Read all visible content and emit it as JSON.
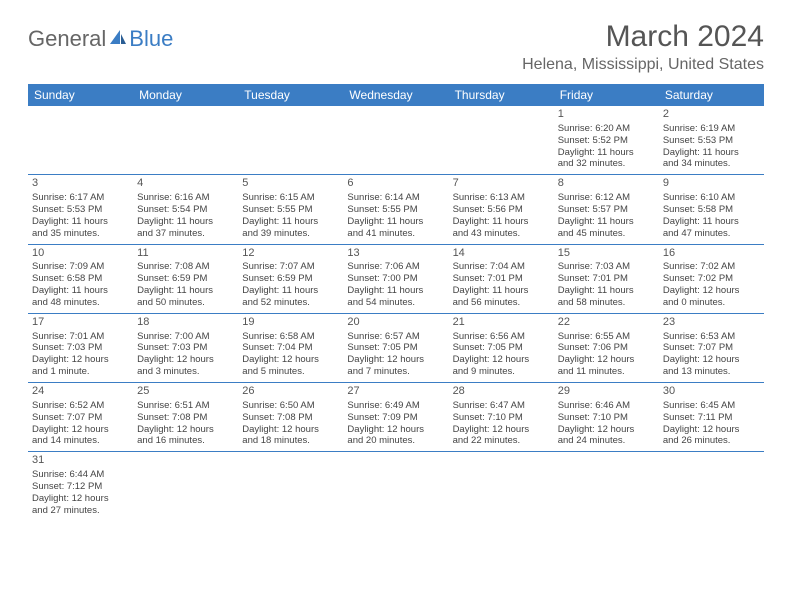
{
  "logo": {
    "general": "General",
    "blue": "Blue"
  },
  "title": "March 2024",
  "location": "Helena, Mississippi, United States",
  "colors": {
    "header_bg": "#3b7dc4",
    "header_text": "#ffffff",
    "text": "#444444",
    "border": "#3b7dc4",
    "page_bg": "#ffffff"
  },
  "day_names": [
    "Sunday",
    "Monday",
    "Tuesday",
    "Wednesday",
    "Thursday",
    "Friday",
    "Saturday"
  ],
  "weeks": [
    [
      null,
      null,
      null,
      null,
      null,
      {
        "n": "1",
        "sr": "Sunrise: 6:20 AM",
        "ss": "Sunset: 5:52 PM",
        "d1": "Daylight: 11 hours",
        "d2": "and 32 minutes."
      },
      {
        "n": "2",
        "sr": "Sunrise: 6:19 AM",
        "ss": "Sunset: 5:53 PM",
        "d1": "Daylight: 11 hours",
        "d2": "and 34 minutes."
      }
    ],
    [
      {
        "n": "3",
        "sr": "Sunrise: 6:17 AM",
        "ss": "Sunset: 5:53 PM",
        "d1": "Daylight: 11 hours",
        "d2": "and 35 minutes."
      },
      {
        "n": "4",
        "sr": "Sunrise: 6:16 AM",
        "ss": "Sunset: 5:54 PM",
        "d1": "Daylight: 11 hours",
        "d2": "and 37 minutes."
      },
      {
        "n": "5",
        "sr": "Sunrise: 6:15 AM",
        "ss": "Sunset: 5:55 PM",
        "d1": "Daylight: 11 hours",
        "d2": "and 39 minutes."
      },
      {
        "n": "6",
        "sr": "Sunrise: 6:14 AM",
        "ss": "Sunset: 5:55 PM",
        "d1": "Daylight: 11 hours",
        "d2": "and 41 minutes."
      },
      {
        "n": "7",
        "sr": "Sunrise: 6:13 AM",
        "ss": "Sunset: 5:56 PM",
        "d1": "Daylight: 11 hours",
        "d2": "and 43 minutes."
      },
      {
        "n": "8",
        "sr": "Sunrise: 6:12 AM",
        "ss": "Sunset: 5:57 PM",
        "d1": "Daylight: 11 hours",
        "d2": "and 45 minutes."
      },
      {
        "n": "9",
        "sr": "Sunrise: 6:10 AM",
        "ss": "Sunset: 5:58 PM",
        "d1": "Daylight: 11 hours",
        "d2": "and 47 minutes."
      }
    ],
    [
      {
        "n": "10",
        "sr": "Sunrise: 7:09 AM",
        "ss": "Sunset: 6:58 PM",
        "d1": "Daylight: 11 hours",
        "d2": "and 48 minutes."
      },
      {
        "n": "11",
        "sr": "Sunrise: 7:08 AM",
        "ss": "Sunset: 6:59 PM",
        "d1": "Daylight: 11 hours",
        "d2": "and 50 minutes."
      },
      {
        "n": "12",
        "sr": "Sunrise: 7:07 AM",
        "ss": "Sunset: 6:59 PM",
        "d1": "Daylight: 11 hours",
        "d2": "and 52 minutes."
      },
      {
        "n": "13",
        "sr": "Sunrise: 7:06 AM",
        "ss": "Sunset: 7:00 PM",
        "d1": "Daylight: 11 hours",
        "d2": "and 54 minutes."
      },
      {
        "n": "14",
        "sr": "Sunrise: 7:04 AM",
        "ss": "Sunset: 7:01 PM",
        "d1": "Daylight: 11 hours",
        "d2": "and 56 minutes."
      },
      {
        "n": "15",
        "sr": "Sunrise: 7:03 AM",
        "ss": "Sunset: 7:01 PM",
        "d1": "Daylight: 11 hours",
        "d2": "and 58 minutes."
      },
      {
        "n": "16",
        "sr": "Sunrise: 7:02 AM",
        "ss": "Sunset: 7:02 PM",
        "d1": "Daylight: 12 hours",
        "d2": "and 0 minutes."
      }
    ],
    [
      {
        "n": "17",
        "sr": "Sunrise: 7:01 AM",
        "ss": "Sunset: 7:03 PM",
        "d1": "Daylight: 12 hours",
        "d2": "and 1 minute."
      },
      {
        "n": "18",
        "sr": "Sunrise: 7:00 AM",
        "ss": "Sunset: 7:03 PM",
        "d1": "Daylight: 12 hours",
        "d2": "and 3 minutes."
      },
      {
        "n": "19",
        "sr": "Sunrise: 6:58 AM",
        "ss": "Sunset: 7:04 PM",
        "d1": "Daylight: 12 hours",
        "d2": "and 5 minutes."
      },
      {
        "n": "20",
        "sr": "Sunrise: 6:57 AM",
        "ss": "Sunset: 7:05 PM",
        "d1": "Daylight: 12 hours",
        "d2": "and 7 minutes."
      },
      {
        "n": "21",
        "sr": "Sunrise: 6:56 AM",
        "ss": "Sunset: 7:05 PM",
        "d1": "Daylight: 12 hours",
        "d2": "and 9 minutes."
      },
      {
        "n": "22",
        "sr": "Sunrise: 6:55 AM",
        "ss": "Sunset: 7:06 PM",
        "d1": "Daylight: 12 hours",
        "d2": "and 11 minutes."
      },
      {
        "n": "23",
        "sr": "Sunrise: 6:53 AM",
        "ss": "Sunset: 7:07 PM",
        "d1": "Daylight: 12 hours",
        "d2": "and 13 minutes."
      }
    ],
    [
      {
        "n": "24",
        "sr": "Sunrise: 6:52 AM",
        "ss": "Sunset: 7:07 PM",
        "d1": "Daylight: 12 hours",
        "d2": "and 14 minutes."
      },
      {
        "n": "25",
        "sr": "Sunrise: 6:51 AM",
        "ss": "Sunset: 7:08 PM",
        "d1": "Daylight: 12 hours",
        "d2": "and 16 minutes."
      },
      {
        "n": "26",
        "sr": "Sunrise: 6:50 AM",
        "ss": "Sunset: 7:08 PM",
        "d1": "Daylight: 12 hours",
        "d2": "and 18 minutes."
      },
      {
        "n": "27",
        "sr": "Sunrise: 6:49 AM",
        "ss": "Sunset: 7:09 PM",
        "d1": "Daylight: 12 hours",
        "d2": "and 20 minutes."
      },
      {
        "n": "28",
        "sr": "Sunrise: 6:47 AM",
        "ss": "Sunset: 7:10 PM",
        "d1": "Daylight: 12 hours",
        "d2": "and 22 minutes."
      },
      {
        "n": "29",
        "sr": "Sunrise: 6:46 AM",
        "ss": "Sunset: 7:10 PM",
        "d1": "Daylight: 12 hours",
        "d2": "and 24 minutes."
      },
      {
        "n": "30",
        "sr": "Sunrise: 6:45 AM",
        "ss": "Sunset: 7:11 PM",
        "d1": "Daylight: 12 hours",
        "d2": "and 26 minutes."
      }
    ],
    [
      {
        "n": "31",
        "sr": "Sunrise: 6:44 AM",
        "ss": "Sunset: 7:12 PM",
        "d1": "Daylight: 12 hours",
        "d2": "and 27 minutes."
      },
      null,
      null,
      null,
      null,
      null,
      null
    ]
  ]
}
